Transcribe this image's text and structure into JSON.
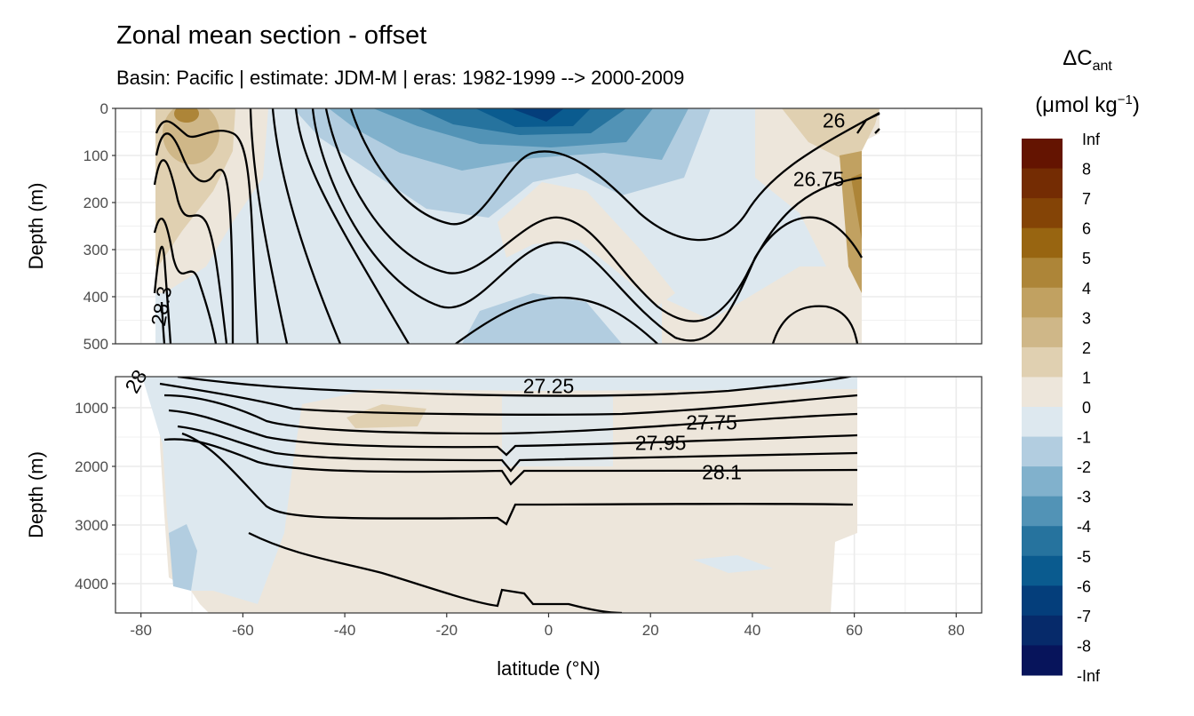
{
  "chart_data": {
    "type": "heatmap",
    "subtype": "filled-contour section with isopycnal contour lines",
    "title": "Zonal mean section - offset",
    "subtitle": "Basin: Pacific | estimate: JDM-M | eras: 1982-1999 --> 2000-2009",
    "xlabel": "latitude (°N)",
    "ylabel": "Depth (m)",
    "xlim": [
      -85,
      85
    ],
    "x_ticks": [
      -80,
      -60,
      -40,
      -20,
      0,
      20,
      40,
      60,
      80
    ],
    "panels": [
      {
        "name": "upper",
        "ylim": [
          0,
          500
        ],
        "y_ticks": [
          0,
          100,
          200,
          300,
          400,
          500
        ],
        "y_reversed": true
      },
      {
        "name": "lower",
        "ylim": [
          470,
          4500
        ],
        "y_ticks": [
          1000,
          2000,
          3000,
          4000
        ],
        "y_reversed": true
      }
    ],
    "contour_labels": [
      {
        "text": "26",
        "lat": 56,
        "depth": 25
      },
      {
        "text": "26.75",
        "lat": 53,
        "depth": 150
      },
      {
        "text": "28.3",
        "lat": -76,
        "depth": 420
      },
      {
        "text": "27.25",
        "lat": 0,
        "depth": 630
      },
      {
        "text": "27.75",
        "lat": 32,
        "depth": 1250
      },
      {
        "text": "27.95",
        "lat": 22,
        "depth": 1600
      },
      {
        "text": "28.1",
        "lat": 34,
        "depth": 2100
      },
      {
        "text": "28",
        "lat": -81,
        "depth": 550
      }
    ],
    "legend": {
      "title_main": "ΔC",
      "title_sub": "ant",
      "title_unit": "(μmol kg",
      "title_exp": "−1",
      "title_close": ")",
      "placement": "right",
      "breaks": [
        "Inf",
        "8",
        "7",
        "6",
        "5",
        "4",
        "3",
        "2",
        "1",
        "0",
        "-1",
        "-2",
        "-3",
        "-4",
        "-5",
        "-6",
        "-7",
        "-8",
        "-Inf"
      ],
      "colors": [
        "#641401",
        "#742c03",
        "#844406",
        "#986511",
        "#ad8538",
        "#c1a161",
        "#cfb788",
        "#e0d0b1",
        "#ede6db",
        "#dde8ef",
        "#b2cde0",
        "#81b1cc",
        "#5293b6",
        "#26739e",
        "#0a5b8f",
        "#043e7b",
        "#062a6a",
        "#07145b"
      ]
    }
  }
}
